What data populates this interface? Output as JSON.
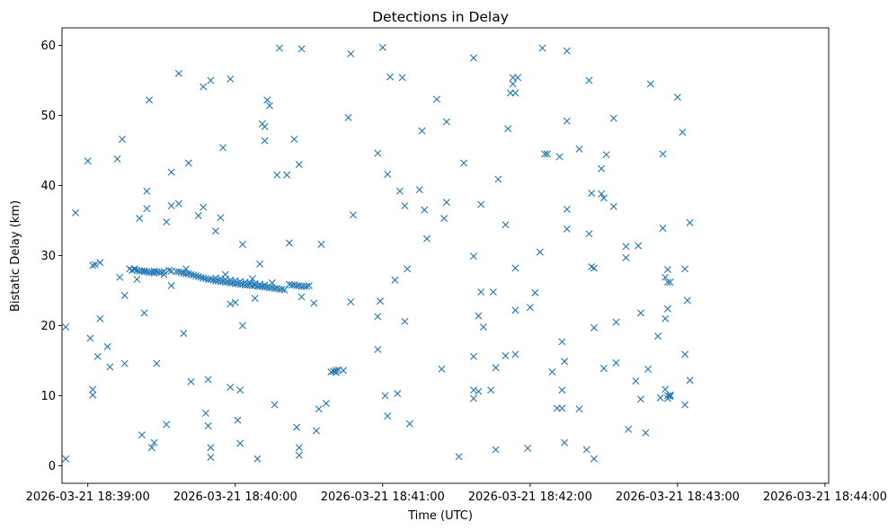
{
  "chart_data": {
    "type": "scatter",
    "title": "Detections in Delay",
    "xlabel": "Time (UTC)",
    "ylabel": "Bistatic Delay (km)",
    "x_unit": "seconds after 2026-03-21 18:39:00",
    "xlim": [
      -10.5,
      301.5
    ],
    "ylim": [
      -2.5,
      62.5
    ],
    "x_ticks": [
      {
        "value": 0,
        "label": "2026-03-21 18:39:00"
      },
      {
        "value": 60,
        "label": "2026-03-21 18:40:00"
      },
      {
        "value": 120,
        "label": "2026-03-21 18:41:00"
      },
      {
        "value": 180,
        "label": "2026-03-21 18:42:00"
      },
      {
        "value": 240,
        "label": "2026-03-21 18:43:00"
      },
      {
        "value": 300,
        "label": "2026-03-21 18:44:00"
      }
    ],
    "y_ticks": [
      {
        "value": 0,
        "label": "0"
      },
      {
        "value": 10,
        "label": "10"
      },
      {
        "value": 20,
        "label": "20"
      },
      {
        "value": 30,
        "label": "30"
      },
      {
        "value": 40,
        "label": "40"
      },
      {
        "value": 50,
        "label": "50"
      },
      {
        "value": 60,
        "label": "60"
      }
    ],
    "marker": "x",
    "grid": false,
    "color": "#1f77b4",
    "series": [
      {
        "name": "detections",
        "points": [
          [
            -9,
            1.0
          ],
          [
            -9,
            19.8
          ],
          [
            -5,
            36.1
          ],
          [
            0,
            43.5
          ],
          [
            1,
            18.2
          ],
          [
            2,
            28.6
          ],
          [
            2,
            10.9
          ],
          [
            2,
            10.1
          ],
          [
            3,
            28.7
          ],
          [
            4,
            15.6
          ],
          [
            5,
            29.0
          ],
          [
            5,
            21.0
          ],
          [
            8,
            17.0
          ],
          [
            9,
            14.1
          ],
          [
            12,
            43.8
          ],
          [
            13,
            26.9
          ],
          [
            14,
            46.6
          ],
          [
            15,
            14.6
          ],
          [
            15,
            24.3
          ],
          [
            17,
            28.1
          ],
          [
            19,
            28.1
          ],
          [
            20,
            26.6
          ],
          [
            21,
            35.3
          ],
          [
            22,
            4.4
          ],
          [
            23,
            21.8
          ],
          [
            23,
            27.8
          ],
          [
            24,
            39.2
          ],
          [
            24,
            36.7
          ],
          [
            25,
            52.2
          ],
          [
            26,
            2.6
          ],
          [
            27,
            3.3
          ],
          [
            28,
            14.6
          ],
          [
            31,
            27.3
          ],
          [
            32,
            34.8
          ],
          [
            32,
            5.9
          ],
          [
            34,
            25.7
          ],
          [
            34,
            41.9
          ],
          [
            34,
            37.1
          ],
          [
            37,
            37.4
          ],
          [
            37,
            56.0
          ],
          [
            39,
            18.9
          ],
          [
            40,
            28.1
          ],
          [
            41,
            43.2
          ],
          [
            42,
            12.0
          ],
          [
            45,
            35.7
          ],
          [
            47,
            54.1
          ],
          [
            47,
            36.9
          ],
          [
            48,
            7.5
          ],
          [
            49,
            5.7
          ],
          [
            49,
            12.3
          ],
          [
            50,
            55.0
          ],
          [
            50,
            2.6
          ],
          [
            50,
            1.2
          ],
          [
            52,
            33.5
          ],
          [
            54,
            35.4
          ],
          [
            55,
            45.4
          ],
          [
            56,
            27.3
          ],
          [
            58,
            11.2
          ],
          [
            58,
            55.2
          ],
          [
            58,
            23.1
          ],
          [
            60,
            23.3
          ],
          [
            61,
            6.5
          ],
          [
            62,
            10.8
          ],
          [
            62,
            3.2
          ],
          [
            63,
            31.6
          ],
          [
            63,
            20.0
          ],
          [
            67,
            26.7
          ],
          [
            68,
            23.9
          ],
          [
            69,
            1.0
          ],
          [
            70,
            28.8
          ],
          [
            71,
            48.8
          ],
          [
            72,
            46.4
          ],
          [
            72,
            48.4
          ],
          [
            73,
            52.2
          ],
          [
            74,
            51.4
          ],
          [
            75,
            26.1
          ],
          [
            76,
            8.7
          ],
          [
            77,
            41.5
          ],
          [
            78,
            59.6
          ],
          [
            81,
            41.5
          ],
          [
            82,
            31.8
          ],
          [
            84,
            46.6
          ],
          [
            85,
            5.5
          ],
          [
            86,
            43.0
          ],
          [
            86,
            2.6
          ],
          [
            86,
            1.5
          ],
          [
            87,
            59.5
          ],
          [
            87,
            24.1
          ],
          [
            90,
            25.7
          ],
          [
            92,
            23.2
          ],
          [
            93,
            5.0
          ],
          [
            94,
            8.1
          ],
          [
            95,
            31.6
          ],
          [
            97,
            8.9
          ],
          [
            99,
            13.4
          ],
          [
            100,
            13.5
          ],
          [
            101,
            13.6
          ],
          [
            101,
            13.3
          ],
          [
            102,
            13.7
          ],
          [
            104,
            13.6
          ],
          [
            106,
            49.7
          ],
          [
            107,
            58.8
          ],
          [
            107,
            23.4
          ],
          [
            108,
            35.8
          ],
          [
            118,
            44.6
          ],
          [
            118,
            16.6
          ],
          [
            118,
            21.3
          ],
          [
            119,
            23.5
          ],
          [
            120,
            59.7
          ],
          [
            121,
            10.0
          ],
          [
            122,
            41.6
          ],
          [
            122,
            7.1
          ],
          [
            123,
            55.5
          ],
          [
            125,
            26.5
          ],
          [
            126,
            10.3
          ],
          [
            127,
            39.2
          ],
          [
            128,
            55.4
          ],
          [
            129,
            37.1
          ],
          [
            129,
            20.6
          ],
          [
            130,
            28.1
          ],
          [
            131,
            6.0
          ],
          [
            135,
            39.4
          ],
          [
            136,
            47.8
          ],
          [
            137,
            36.5
          ],
          [
            138,
            32.4
          ],
          [
            142,
            52.3
          ],
          [
            144,
            13.8
          ],
          [
            145,
            35.3
          ],
          [
            146,
            37.6
          ],
          [
            146,
            49.1
          ],
          [
            151,
            1.3
          ],
          [
            153,
            43.2
          ],
          [
            157,
            58.2
          ],
          [
            157,
            29.9
          ],
          [
            157,
            15.6
          ],
          [
            157,
            10.8
          ],
          [
            157,
            9.6
          ],
          [
            159,
            21.4
          ],
          [
            159,
            10.6
          ],
          [
            160,
            37.3
          ],
          [
            160,
            24.8
          ],
          [
            161,
            19.8
          ],
          [
            164,
            10.8
          ],
          [
            165,
            24.8
          ],
          [
            166,
            2.3
          ],
          [
            166,
            14.0
          ],
          [
            167,
            40.9
          ],
          [
            170,
            15.7
          ],
          [
            170,
            34.4
          ],
          [
            171,
            48.1
          ],
          [
            172,
            53.2
          ],
          [
            173,
            55.4
          ],
          [
            173,
            54.5
          ],
          [
            174,
            53.2
          ],
          [
            174,
            28.2
          ],
          [
            174,
            22.2
          ],
          [
            174,
            15.9
          ],
          [
            175,
            55.4
          ],
          [
            179,
            2.5
          ],
          [
            180,
            22.6
          ],
          [
            182,
            24.7
          ],
          [
            184,
            30.5
          ],
          [
            185,
            59.6
          ],
          [
            186,
            44.5
          ],
          [
            187,
            44.5
          ],
          [
            189,
            13.4
          ],
          [
            191,
            8.2
          ],
          [
            192,
            44.1
          ],
          [
            193,
            17.7
          ],
          [
            193,
            10.8
          ],
          [
            193,
            8.2
          ],
          [
            194,
            3.3
          ],
          [
            194,
            14.9
          ],
          [
            195,
            59.2
          ],
          [
            195,
            49.2
          ],
          [
            195,
            36.6
          ],
          [
            195,
            33.8
          ],
          [
            200,
            45.2
          ],
          [
            200,
            8.1
          ],
          [
            203,
            2.3
          ],
          [
            204,
            55.0
          ],
          [
            204,
            33.1
          ],
          [
            205,
            28.4
          ],
          [
            205,
            38.9
          ],
          [
            206,
            28.2
          ],
          [
            206,
            19.7
          ],
          [
            206,
            1.0
          ],
          [
            209,
            38.8
          ],
          [
            209,
            42.4
          ],
          [
            210,
            13.9
          ],
          [
            210,
            38.2
          ],
          [
            211,
            44.4
          ],
          [
            214,
            49.6
          ],
          [
            214,
            37.0
          ],
          [
            215,
            20.5
          ],
          [
            215,
            14.7
          ],
          [
            219,
            31.3
          ],
          [
            219,
            29.7
          ],
          [
            220,
            5.2
          ],
          [
            223,
            12.1
          ],
          [
            224,
            31.4
          ],
          [
            225,
            9.5
          ],
          [
            225,
            21.8
          ],
          [
            227,
            4.7
          ],
          [
            228,
            13.8
          ],
          [
            229,
            54.5
          ],
          [
            232,
            18.5
          ],
          [
            233,
            9.7
          ],
          [
            234,
            33.9
          ],
          [
            234,
            44.5
          ],
          [
            235,
            21.0
          ],
          [
            235,
            26.9
          ],
          [
            235,
            10.9
          ],
          [
            236,
            28.0
          ],
          [
            236,
            26.2
          ],
          [
            236,
            22.4
          ],
          [
            236,
            10.0
          ],
          [
            236,
            9.6
          ],
          [
            237,
            9.9
          ],
          [
            237,
            26.2
          ],
          [
            237,
            10.1
          ],
          [
            240,
            52.6
          ],
          [
            242,
            47.6
          ],
          [
            243,
            28.1
          ],
          [
            243,
            15.9
          ],
          [
            243,
            8.7
          ],
          [
            244,
            23.6
          ],
          [
            245,
            34.7
          ],
          [
            245,
            12.2
          ],
          [
            27,
            27.8
          ],
          [
            28,
            27.7
          ],
          [
            29,
            27.6
          ],
          [
            30,
            27.6
          ],
          [
            31,
            27.7
          ],
          [
            33,
            27.9
          ],
          [
            34,
            27.8
          ],
          [
            36,
            27.7
          ],
          [
            37,
            27.7
          ],
          [
            38,
            27.6
          ],
          [
            39,
            27.5
          ],
          [
            40,
            27.4
          ],
          [
            41,
            27.4
          ],
          [
            42,
            27.3
          ],
          [
            43,
            27.2
          ],
          [
            44,
            27.1
          ],
          [
            45,
            27.0
          ],
          [
            46,
            26.9
          ],
          [
            47,
            26.8
          ],
          [
            48,
            26.7
          ],
          [
            49,
            26.6
          ],
          [
            50,
            26.6
          ],
          [
            51,
            26.5
          ],
          [
            52,
            26.4
          ],
          [
            53,
            26.4
          ],
          [
            54,
            26.3
          ],
          [
            55,
            26.3
          ],
          [
            56,
            26.2
          ],
          [
            57,
            26.2
          ],
          [
            58,
            26.1
          ],
          [
            59,
            26.1
          ],
          [
            60,
            26.0
          ],
          [
            61,
            26.0
          ],
          [
            62,
            25.9
          ],
          [
            63,
            25.9
          ],
          [
            64,
            25.8
          ],
          [
            65,
            25.8
          ],
          [
            66,
            25.8
          ],
          [
            67,
            25.7
          ],
          [
            68,
            25.7
          ],
          [
            69,
            25.6
          ],
          [
            70,
            25.6
          ],
          [
            71,
            25.6
          ],
          [
            72,
            25.5
          ],
          [
            73,
            25.5
          ],
          [
            74,
            25.4
          ],
          [
            75,
            25.4
          ],
          [
            76,
            25.3
          ],
          [
            77,
            25.3
          ],
          [
            78,
            25.2
          ],
          [
            79,
            25.2
          ],
          [
            80,
            25.1
          ],
          [
            82,
            25.9
          ],
          [
            83,
            25.8
          ],
          [
            84,
            25.8
          ],
          [
            85,
            25.7
          ],
          [
            86,
            25.7
          ],
          [
            87,
            25.6
          ],
          [
            88,
            25.6
          ],
          [
            89,
            25.6
          ],
          [
            18,
            27.9
          ],
          [
            19,
            28.0
          ],
          [
            20,
            27.9
          ],
          [
            21,
            27.8
          ],
          [
            22,
            27.8
          ],
          [
            23,
            27.7
          ],
          [
            24,
            27.7
          ],
          [
            25,
            27.6
          ],
          [
            26,
            27.6
          ],
          [
            27,
            27.5
          ],
          [
            52,
            26.8
          ],
          [
            54,
            26.7
          ],
          [
            56,
            26.6
          ],
          [
            58,
            26.5
          ],
          [
            60,
            26.4
          ],
          [
            62,
            26.3
          ],
          [
            64,
            26.2
          ],
          [
            66,
            26.1
          ],
          [
            68,
            26.0
          ],
          [
            70,
            25.9
          ],
          [
            72,
            25.8
          ]
        ]
      }
    ]
  }
}
